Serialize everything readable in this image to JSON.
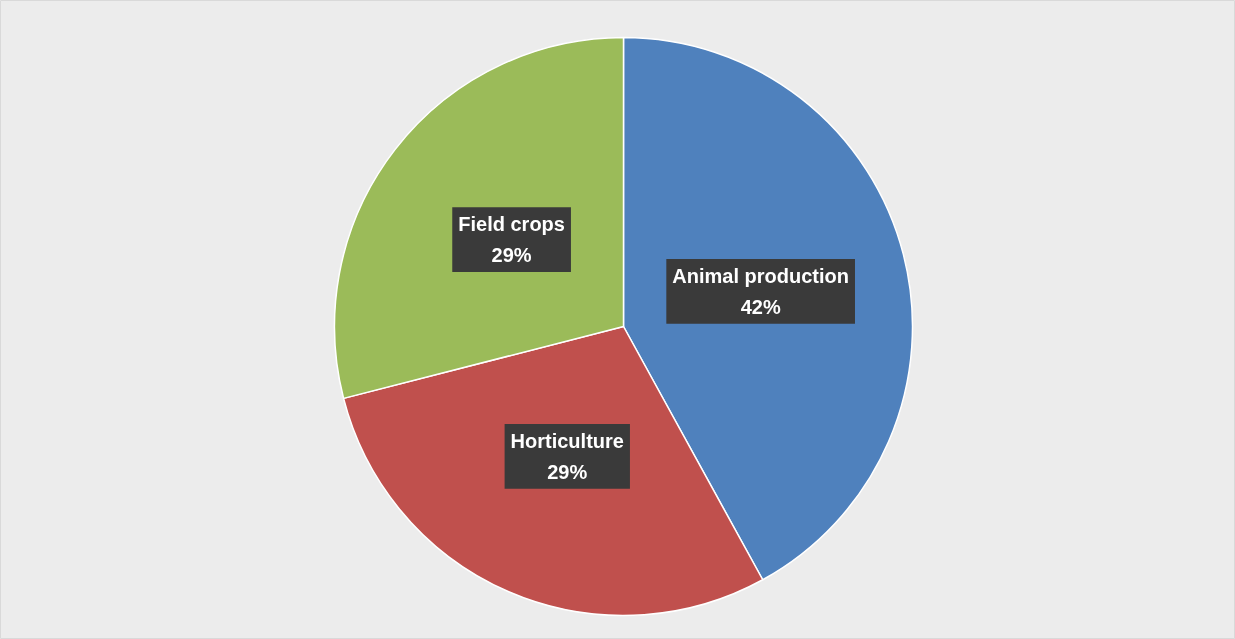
{
  "chart_data": {
    "type": "pie",
    "categories": [
      "Animal production",
      "Horticulture",
      "Field crops"
    ],
    "values": [
      42,
      29,
      29
    ],
    "colors": [
      "#4f81bd",
      "#c0504d",
      "#9bbb59"
    ],
    "value_labels": [
      "42%",
      "29%",
      "29%"
    ]
  }
}
